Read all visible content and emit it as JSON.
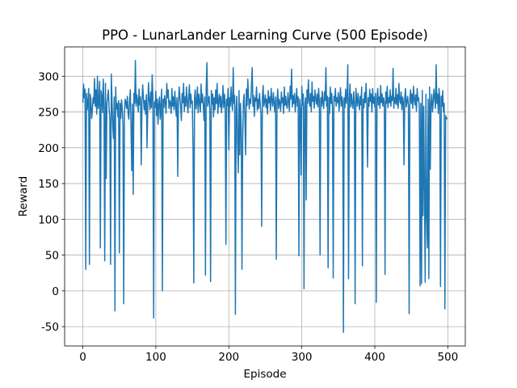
{
  "chart_data": {
    "type": "line",
    "title": "PPO - LunarLander Learning Curve (500 Episode)",
    "x_label": "Episode",
    "y_label": "Reward",
    "grid": true,
    "xlim": [
      -24.95,
      523.95
    ],
    "ylim": [
      -77,
      341
    ],
    "xticks": [
      0,
      100,
      200,
      300,
      400,
      500
    ],
    "yticks": [
      -50,
      0,
      50,
      100,
      150,
      200,
      250,
      300
    ],
    "x": [
      0,
      1,
      2,
      3,
      4,
      5,
      6,
      7,
      8,
      9,
      10,
      11,
      12,
      13,
      14,
      15,
      16,
      17,
      18,
      19,
      20,
      21,
      22,
      23,
      24,
      25,
      26,
      27,
      28,
      29,
      30,
      31,
      32,
      33,
      34,
      35,
      36,
      37,
      38,
      39,
      40,
      41,
      42,
      43,
      44,
      45,
      46,
      47,
      48,
      49,
      50,
      51,
      52,
      53,
      54,
      55,
      56,
      57,
      58,
      59,
      60,
      61,
      62,
      63,
      64,
      65,
      66,
      67,
      68,
      69,
      70,
      71,
      72,
      73,
      74,
      75,
      76,
      77,
      78,
      79,
      80,
      81,
      82,
      83,
      84,
      85,
      86,
      87,
      88,
      89,
      90,
      91,
      92,
      93,
      94,
      95,
      96,
      97,
      98,
      99,
      100,
      101,
      102,
      103,
      104,
      105,
      106,
      107,
      108,
      109,
      110,
      111,
      112,
      113,
      114,
      115,
      116,
      117,
      118,
      119,
      120,
      121,
      122,
      123,
      124,
      125,
      126,
      127,
      128,
      129,
      130,
      131,
      132,
      133,
      134,
      135,
      136,
      137,
      138,
      139,
      140,
      141,
      142,
      143,
      144,
      145,
      146,
      147,
      148,
      149,
      150,
      151,
      152,
      153,
      154,
      155,
      156,
      157,
      158,
      159,
      160,
      161,
      162,
      163,
      164,
      165,
      166,
      167,
      168,
      169,
      170,
      171,
      172,
      173,
      174,
      175,
      176,
      177,
      178,
      179,
      180,
      181,
      182,
      183,
      184,
      185,
      186,
      187,
      188,
      189,
      190,
      191,
      192,
      193,
      194,
      195,
      196,
      197,
      198,
      199,
      200,
      201,
      202,
      203,
      204,
      205,
      206,
      207,
      208,
      209,
      210,
      211,
      212,
      213,
      214,
      215,
      216,
      217,
      218,
      219,
      220,
      221,
      222,
      223,
      224,
      225,
      226,
      227,
      228,
      229,
      230,
      231,
      232,
      233,
      234,
      235,
      236,
      237,
      238,
      239,
      240,
      241,
      242,
      243,
      244,
      245,
      246,
      247,
      248,
      249,
      250,
      251,
      252,
      253,
      254,
      255,
      256,
      257,
      258,
      259,
      260,
      261,
      262,
      263,
      264,
      265,
      266,
      267,
      268,
      269,
      270,
      271,
      272,
      273,
      274,
      275,
      276,
      277,
      278,
      279,
      280,
      281,
      282,
      283,
      284,
      285,
      286,
      287,
      288,
      289,
      290,
      291,
      292,
      293,
      294,
      295,
      296,
      297,
      298,
      299,
      300,
      301,
      302,
      303,
      304,
      305,
      306,
      307,
      308,
      309,
      310,
      311,
      312,
      313,
      314,
      315,
      316,
      317,
      318,
      319,
      320,
      321,
      322,
      323,
      324,
      325,
      326,
      327,
      328,
      329,
      330,
      331,
      332,
      333,
      334,
      335,
      336,
      337,
      338,
      339,
      340,
      341,
      342,
      343,
      344,
      345,
      346,
      347,
      348,
      349,
      350,
      351,
      352,
      353,
      354,
      355,
      356,
      357,
      358,
      359,
      360,
      361,
      362,
      363,
      364,
      365,
      366,
      367,
      368,
      369,
      370,
      371,
      372,
      373,
      374,
      375,
      376,
      377,
      378,
      379,
      380,
      381,
      382,
      383,
      384,
      385,
      386,
      387,
      388,
      389,
      390,
      391,
      392,
      393,
      394,
      395,
      396,
      397,
      398,
      399,
      400,
      401,
      402,
      403,
      404,
      405,
      406,
      407,
      408,
      409,
      410,
      411,
      412,
      413,
      414,
      415,
      416,
      417,
      418,
      419,
      420,
      421,
      422,
      423,
      424,
      425,
      426,
      427,
      428,
      429,
      430,
      431,
      432,
      433,
      434,
      435,
      436,
      437,
      438,
      439,
      440,
      441,
      442,
      443,
      444,
      445,
      446,
      447,
      448,
      449,
      450,
      451,
      452,
      453,
      454,
      455,
      456,
      457,
      458,
      459,
      460,
      461,
      462,
      463,
      464,
      465,
      466,
      467,
      468,
      469,
      470,
      471,
      472,
      473,
      474,
      475,
      476,
      477,
      478,
      479,
      480,
      481,
      482,
      483,
      484,
      485,
      486,
      487,
      488,
      489,
      490,
      491,
      492,
      493,
      494,
      495,
      496,
      497,
      498,
      499
    ],
    "series": [
      {
        "color": "#1f77b4",
        "values": [
          263,
          289,
          270,
          282,
          30,
          276,
          253,
          265,
          283,
          37,
          275,
          268,
          241,
          252,
          270,
          262,
          297,
          258,
          281,
          247,
          300,
          255,
          265,
          293,
          60,
          280,
          272,
          249,
          296,
          258,
          42,
          290,
          157,
          262,
          271,
          281,
          254,
          240,
          37,
          303,
          265,
          230,
          213,
          271,
          -28,
          285,
          254,
          262,
          243,
          266,
          53,
          262,
          241,
          267,
          255,
          232,
          -18,
          248,
          268,
          263,
          255,
          272,
          248,
          240,
          265,
          281,
          230,
          168,
          261,
          135,
          276,
          262,
          322,
          258,
          274,
          265,
          250,
          282,
          260,
          271,
          176,
          262,
          288,
          270,
          253,
          266,
          247,
          274,
          200,
          260,
          291,
          266,
          253,
          278,
          256,
          302,
          270,
          -38,
          264,
          256,
          279,
          245,
          268,
          233,
          262,
          271,
          240,
          258,
          282,
          0,
          268,
          256,
          273,
          263,
          248,
          290,
          270,
          281,
          255,
          266,
          262,
          248,
          283,
          258,
          271,
          253,
          279,
          260,
          244,
          270,
          160,
          262,
          285,
          270,
          256,
          238,
          276,
          263,
          290,
          251,
          271,
          258,
          285,
          264,
          249,
          272,
          288,
          256,
          275,
          262,
          265,
          196,
          11,
          270,
          281,
          254,
          262,
          285,
          249,
          275,
          265,
          250,
          289,
          263,
          275,
          260,
          238,
          271,
          22,
          284,
          319,
          258,
          266,
          272,
          252,
          13,
          280,
          261,
          275,
          243,
          270,
          253,
          281,
          262,
          290,
          248,
          266,
          275,
          257,
          272,
          249,
          263,
          287,
          256,
          275,
          263,
          65,
          268,
          259,
          283,
          197,
          270,
          258,
          285,
          264,
          252,
          312,
          262,
          273,
          -33,
          255,
          272,
          205,
          165,
          280,
          190,
          262,
          230,
          30,
          210,
          265,
          275,
          243,
          190,
          282,
          259,
          296,
          270,
          254,
          268,
          262,
          287,
          312,
          258,
          273,
          244,
          270,
          265,
          285,
          252,
          268,
          255,
          276,
          262,
          248,
          90,
          270,
          287,
          258,
          265,
          274,
          256,
          268,
          247,
          280,
          263,
          271,
          252,
          283,
          266,
          258,
          277,
          262,
          250,
          271,
          44,
          265,
          282,
          255,
          268,
          262,
          251,
          278,
          263,
          270,
          248,
          285,
          259,
          272,
          260,
          255,
          277,
          265,
          251,
          286,
          268,
          310,
          257,
          273,
          262,
          276,
          250,
          265,
          283,
          258,
          271,
          49,
          268,
          255,
          162,
          286,
          260,
          275,
          3,
          258,
          270,
          127,
          281,
          262,
          295,
          267,
          258,
          276,
          250,
          292,
          265,
          272,
          255,
          281,
          268,
          261,
          275,
          257,
          283,
          266,
          50,
          270,
          258,
          279,
          262,
          255,
          278,
          266,
          312,
          258,
          272,
          32,
          270,
          248,
          285,
          262,
          276,
          255,
          18,
          272,
          265,
          283,
          258,
          270,
          263,
          277,
          251,
          268,
          284,
          258,
          271,
          265,
          -58,
          270,
          256,
          282,
          262,
          275,
          316,
          17,
          268,
          289,
          257,
          275,
          262,
          255,
          278,
          264,
          -18,
          283,
          270,
          258,
          276,
          265,
          253,
          272,
          260,
          285,
          35,
          268,
          256,
          277,
          263,
          290,
          262,
          173,
          270,
          258,
          282,
          265,
          275,
          250,
          283,
          262,
          271,
          257,
          276,
          -16,
          268,
          283,
          260,
          271,
          255,
          287,
          263,
          275,
          258,
          270,
          264,
          23,
          278,
          262,
          286,
          256,
          270,
          263,
          281,
          258,
          272,
          266,
          311,
          255,
          270,
          262,
          283,
          260,
          274,
          255,
          290,
          268,
          262,
          278,
          253,
          271,
          265,
          176,
          270,
          283,
          257,
          265,
          272,
          258,
          -32,
          268,
          281,
          262,
          275,
          255,
          286,
          268,
          260,
          274,
          251,
          283,
          266,
          270,
          255,
          7,
          262,
          10,
          280,
          105,
          258,
          140,
          12,
          275,
          105,
          60,
          268,
          17,
          285,
          170,
          262,
          275,
          250,
          263,
          282,
          270,
          255,
          316,
          262,
          275,
          248,
          283,
          268,
          6,
          272,
          258,
          280,
          250,
          262,
          -25,
          245,
          240,
          242
        ]
      }
    ]
  }
}
